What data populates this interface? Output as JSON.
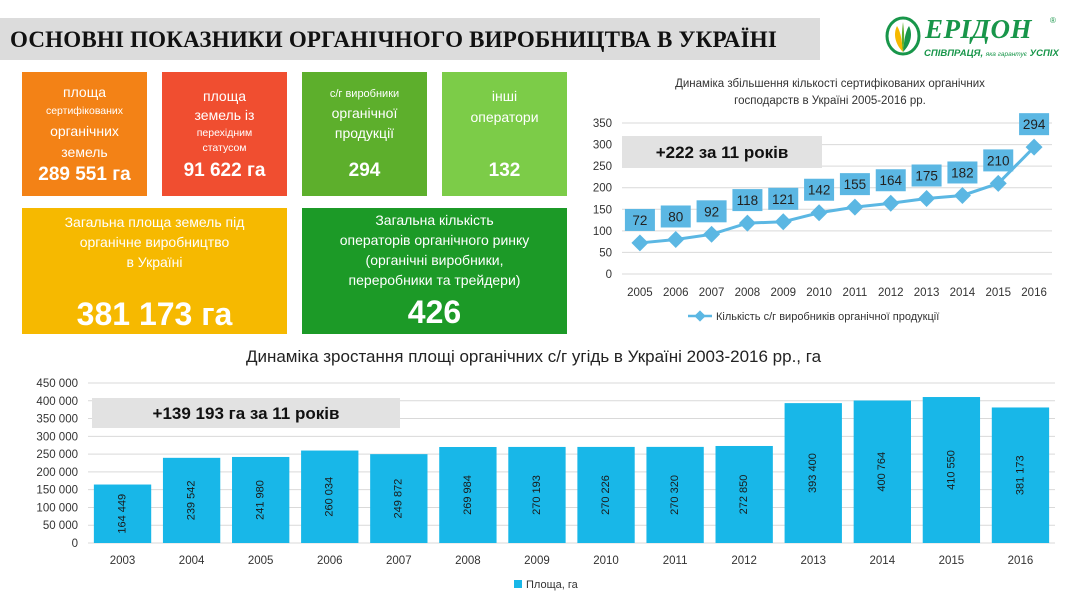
{
  "header": {
    "title": "ОСНОВНІ ПОКАЗНИКИ ОРГАНІЧНОГО ВИРОБНИЦТВА В УКРАЇНІ"
  },
  "logo": {
    "name": "ЕРІДОН",
    "reg": "®",
    "slogan_a": "СПІВПРАЦЯ,",
    "slogan_b": "яка гарантує",
    "slogan_c": "УСПІХ"
  },
  "colors": {
    "orange": "#f38216",
    "red": "#f04e30",
    "green": "#5daf2c",
    "light_green": "#7ccc48",
    "yellow": "#f6b900",
    "dark_green": "#1c9a27",
    "line_series": "#5bb7e3",
    "bar_series": "#18b7e8",
    "callout_bg": "#e2e2e2",
    "header_bg": "#dcdcdc"
  },
  "stats": {
    "certified_area": {
      "l1": "площа",
      "l2": "сертифікованих",
      "l3": "органічних",
      "l4": "земель",
      "value": "289 551 га"
    },
    "transition_area": {
      "l1": "площа",
      "l2": "земель із",
      "l3": "перехідним",
      "l4": "статусом",
      "value": "91 622 га"
    },
    "producers": {
      "l1": "с/г виробники",
      "l2": "органічної",
      "l3": "продукції",
      "value": "294"
    },
    "other_operators": {
      "l1": "інші",
      "l2": "оператори",
      "value": "132"
    },
    "total_area": {
      "l1": "Загальна площа земель під",
      "l2": "органічне виробництво",
      "l3": "в Україні",
      "value": "381 173 га"
    },
    "total_operators": {
      "l1": "Загальна кількість",
      "l2": "операторів органічного ринку",
      "l3": "(органічні виробники,",
      "l4": "переробники та трейдери)",
      "value": "426"
    }
  },
  "chart_data": [
    {
      "type": "line",
      "title": "Динаміка збільшення кількості сертифікованих органічних господарств в Україні 2005-2016 рр.",
      "title_l1": "Динаміка збільшення кількості сертифікованих органічних",
      "title_l2": "господарств в Україні 2005-2016 рр.",
      "x": [
        "2005",
        "2006",
        "2007",
        "2008",
        "2009",
        "2010",
        "2011",
        "2012",
        "2013",
        "2014",
        "2015",
        "2016"
      ],
      "series": [
        {
          "name": "Кількість с/г виробників органічної продукції",
          "values": [
            72,
            80,
            92,
            118,
            121,
            142,
            155,
            164,
            175,
            182,
            210,
            294
          ]
        }
      ],
      "ylim": [
        0,
        350
      ],
      "yticks": [
        "0",
        "50",
        "100",
        "150",
        "200",
        "250",
        "300",
        "350"
      ],
      "annotation": "+222 за 11 років",
      "grid": true,
      "legend_position": "bottom"
    },
    {
      "type": "bar",
      "title": "Динаміка зростання площі органічних с/г угідь в Україні 2003-2016 рр., га",
      "categories": [
        "2003",
        "2004",
        "2005",
        "2006",
        "2007",
        "2008",
        "2009",
        "2010",
        "2011",
        "2012",
        "2013",
        "2014",
        "2015",
        "2016"
      ],
      "series": [
        {
          "name": "Площа, га",
          "values": [
            164449,
            239542,
            241980,
            260034,
            249872,
            269984,
            270193,
            270226,
            270320,
            272850,
            393400,
            400764,
            410550,
            381173
          ]
        }
      ],
      "data_labels": [
        "164 449",
        "239 542",
        "241 980",
        "260 034",
        "249 872",
        "269 984",
        "270 193",
        "270 226",
        "270 320",
        "272 850",
        "393 400",
        "400 764",
        "410 550",
        "381 173"
      ],
      "ylim": [
        0,
        450000
      ],
      "yticks": [
        "0",
        "50 000",
        "100 000",
        "150 000",
        "200 000",
        "250 000",
        "300 000",
        "350 000",
        "400 000",
        "450 000"
      ],
      "annotation": "+139 193 га за 11 років",
      "grid": true,
      "legend_position": "bottom"
    }
  ]
}
